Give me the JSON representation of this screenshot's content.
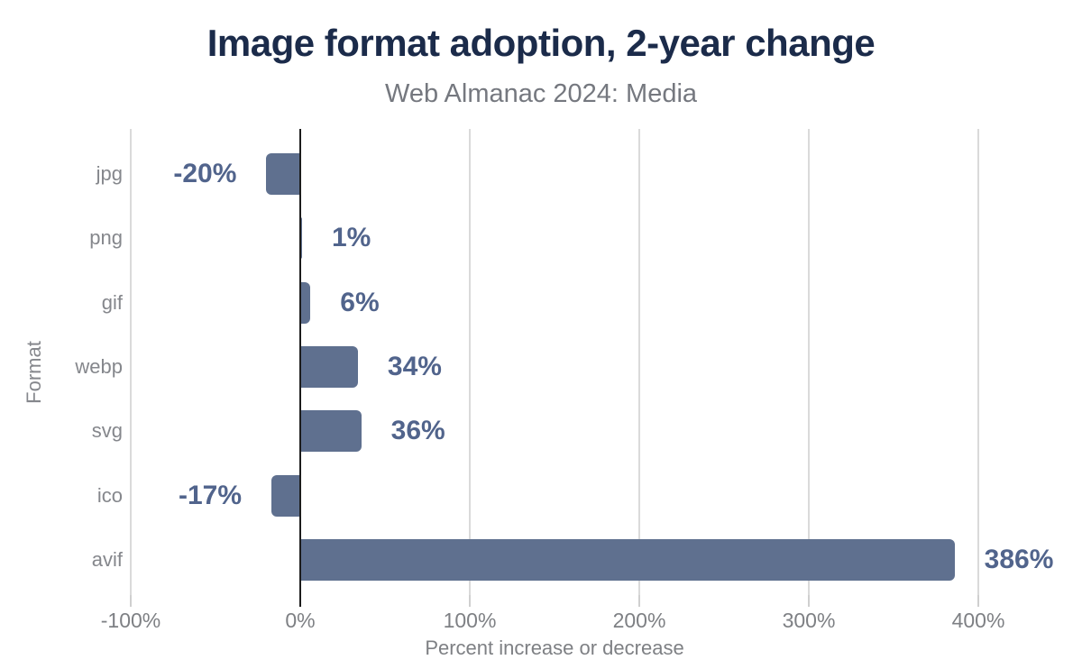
{
  "header": {
    "title": "Image format adoption, 2-year change",
    "subtitle": "Web Almanac 2024: Media"
  },
  "chart_data": {
    "type": "bar",
    "orientation": "horizontal",
    "title": "Image format adoption, 2-year change",
    "subtitle": "Web Almanac 2024: Media",
    "xlabel": "Percent increase or decrease",
    "ylabel": "Format",
    "categories": [
      "jpg",
      "png",
      "gif",
      "webp",
      "svg",
      "ico",
      "avif"
    ],
    "values": [
      -20,
      1,
      6,
      34,
      36,
      -17,
      386
    ],
    "value_labels": [
      "-20%",
      "1%",
      "6%",
      "34%",
      "36%",
      "-17%",
      "386%"
    ],
    "x_ticks": [
      {
        "value": -100,
        "label": "-100%"
      },
      {
        "value": 0,
        "label": "0%"
      },
      {
        "value": 100,
        "label": "100%"
      },
      {
        "value": 200,
        "label": "200%"
      },
      {
        "value": 300,
        "label": "300%"
      },
      {
        "value": 400,
        "label": "400%"
      }
    ],
    "xlim": [
      -100,
      440
    ],
    "grid": "vertical-gridlines-on",
    "legend": "none",
    "colors": {
      "bar": "#5f708f",
      "value_label": "#51648c",
      "title": "#1b2b4a",
      "subtitle": "#75787f",
      "category_label": "#85878c",
      "tick_label": "#7e8084",
      "gridline": "#dadada",
      "zero_line": "#1c1c1c",
      "background": "#ffffff"
    }
  }
}
